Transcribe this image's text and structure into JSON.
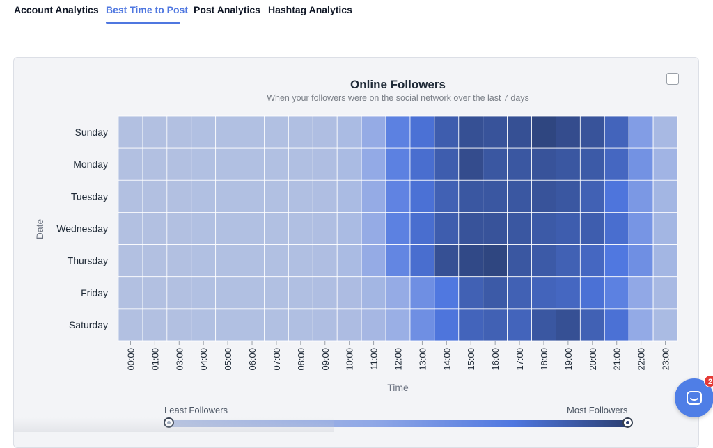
{
  "tabs": [
    {
      "label": "Account Analytics",
      "active": false
    },
    {
      "label": "Best Time to Post",
      "active": true
    },
    {
      "label": "Post Analytics",
      "active": false
    },
    {
      "label": "Hashtag Analytics",
      "active": false
    }
  ],
  "legend": {
    "min_label": "Least Followers",
    "max_label": "Most Followers",
    "selected_min_fraction": 0,
    "selected_max_fraction": 1
  },
  "chat": {
    "badge_count": "2"
  },
  "colors": {
    "accent": "#4f77e0",
    "scale": [
      "#b6c3e1",
      "#8fa7e6",
      "#4f77e0",
      "#2b3f73"
    ]
  },
  "chart_data": {
    "type": "heatmap",
    "title": "Online Followers",
    "subtitle": "When your followers were on the social network over the last 7 days",
    "xlabel": "Time",
    "ylabel": "Date",
    "x_categories": [
      "00:00",
      "01:00",
      "03:00",
      "04:00",
      "05:00",
      "06:00",
      "07:00",
      "08:00",
      "09:00",
      "10:00",
      "11:00",
      "12:00",
      "13:00",
      "14:00",
      "15:00",
      "16:00",
      "17:00",
      "18:00",
      "19:00",
      "20:00",
      "21:00",
      "22:00",
      "23:00"
    ],
    "y_categories": [
      "Sunday",
      "Monday",
      "Tuesday",
      "Wednesday",
      "Thursday",
      "Friday",
      "Saturday"
    ],
    "value_range": [
      0,
      100
    ],
    "legend_placement": "bottom",
    "grid": true,
    "values": [
      [
        3,
        3,
        3,
        4,
        4,
        4,
        4,
        5,
        6,
        10,
        28,
        60,
        70,
        82,
        90,
        88,
        90,
        96,
        92,
        88,
        78,
        40,
        12
      ],
      [
        3,
        3,
        3,
        4,
        4,
        4,
        4,
        5,
        6,
        10,
        30,
        60,
        72,
        82,
        92,
        86,
        86,
        88,
        86,
        84,
        76,
        48,
        18
      ],
      [
        3,
        3,
        3,
        4,
        4,
        4,
        4,
        5,
        6,
        10,
        28,
        58,
        70,
        80,
        86,
        86,
        86,
        88,
        86,
        80,
        68,
        44,
        16
      ],
      [
        3,
        3,
        3,
        4,
        4,
        4,
        4,
        5,
        6,
        10,
        28,
        60,
        72,
        82,
        88,
        88,
        86,
        84,
        82,
        82,
        72,
        46,
        16
      ],
      [
        3,
        3,
        3,
        4,
        4,
        4,
        4,
        5,
        6,
        10,
        28,
        56,
        72,
        90,
        94,
        96,
        86,
        84,
        80,
        76,
        66,
        50,
        16
      ],
      [
        3,
        3,
        3,
        4,
        4,
        4,
        4,
        5,
        6,
        8,
        16,
        28,
        50,
        66,
        80,
        84,
        80,
        78,
        76,
        70,
        60,
        32,
        12
      ],
      [
        3,
        3,
        3,
        4,
        4,
        4,
        4,
        5,
        6,
        8,
        14,
        24,
        50,
        68,
        78,
        80,
        78,
        86,
        90,
        80,
        70,
        30,
        10
      ]
    ]
  }
}
